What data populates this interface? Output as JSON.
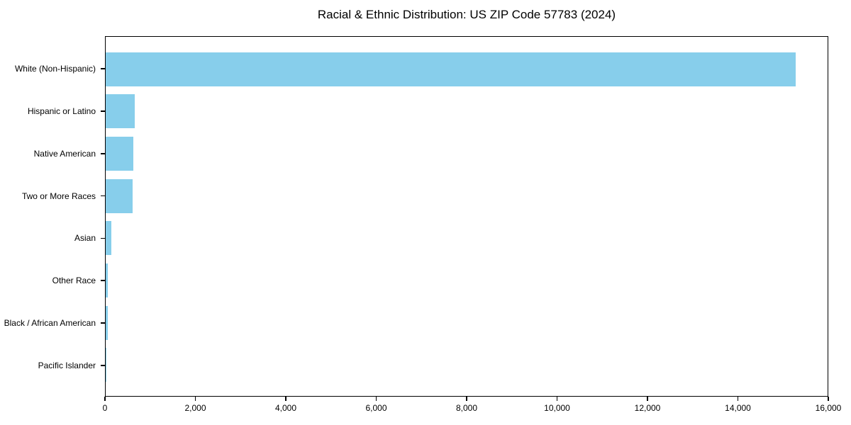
{
  "title": "Racial & Ethnic Distribution: US ZIP Code 57783 (2024)",
  "colors": {
    "bar": "#87CEEB",
    "axis": "#000000",
    "text": "#000000",
    "background": "#FFFFFF"
  },
  "chart_data": {
    "type": "bar",
    "orientation": "horizontal",
    "title": "Racial & Ethnic Distribution: US ZIP Code 57783 (2024)",
    "categories": [
      "White (Non-Hispanic)",
      "Hispanic or Latino",
      "Native American",
      "Two or More Races",
      "Asian",
      "Other Race",
      "Black / African American",
      "Pacific Islander"
    ],
    "values": [
      15290,
      650,
      620,
      595,
      130,
      45,
      52,
      9
    ],
    "xlabel": "",
    "ylabel": "",
    "xlim": [
      0,
      16000
    ],
    "xticks": [
      0,
      2000,
      4000,
      6000,
      8000,
      10000,
      12000,
      14000,
      16000
    ],
    "xtick_labels": [
      "0",
      "2,000",
      "4,000",
      "6,000",
      "8,000",
      "10,000",
      "12,000",
      "14,000",
      "16,000"
    ],
    "grid": false,
    "legend": null,
    "bar_color": "#87CEEB",
    "first_category_on_top": true
  }
}
